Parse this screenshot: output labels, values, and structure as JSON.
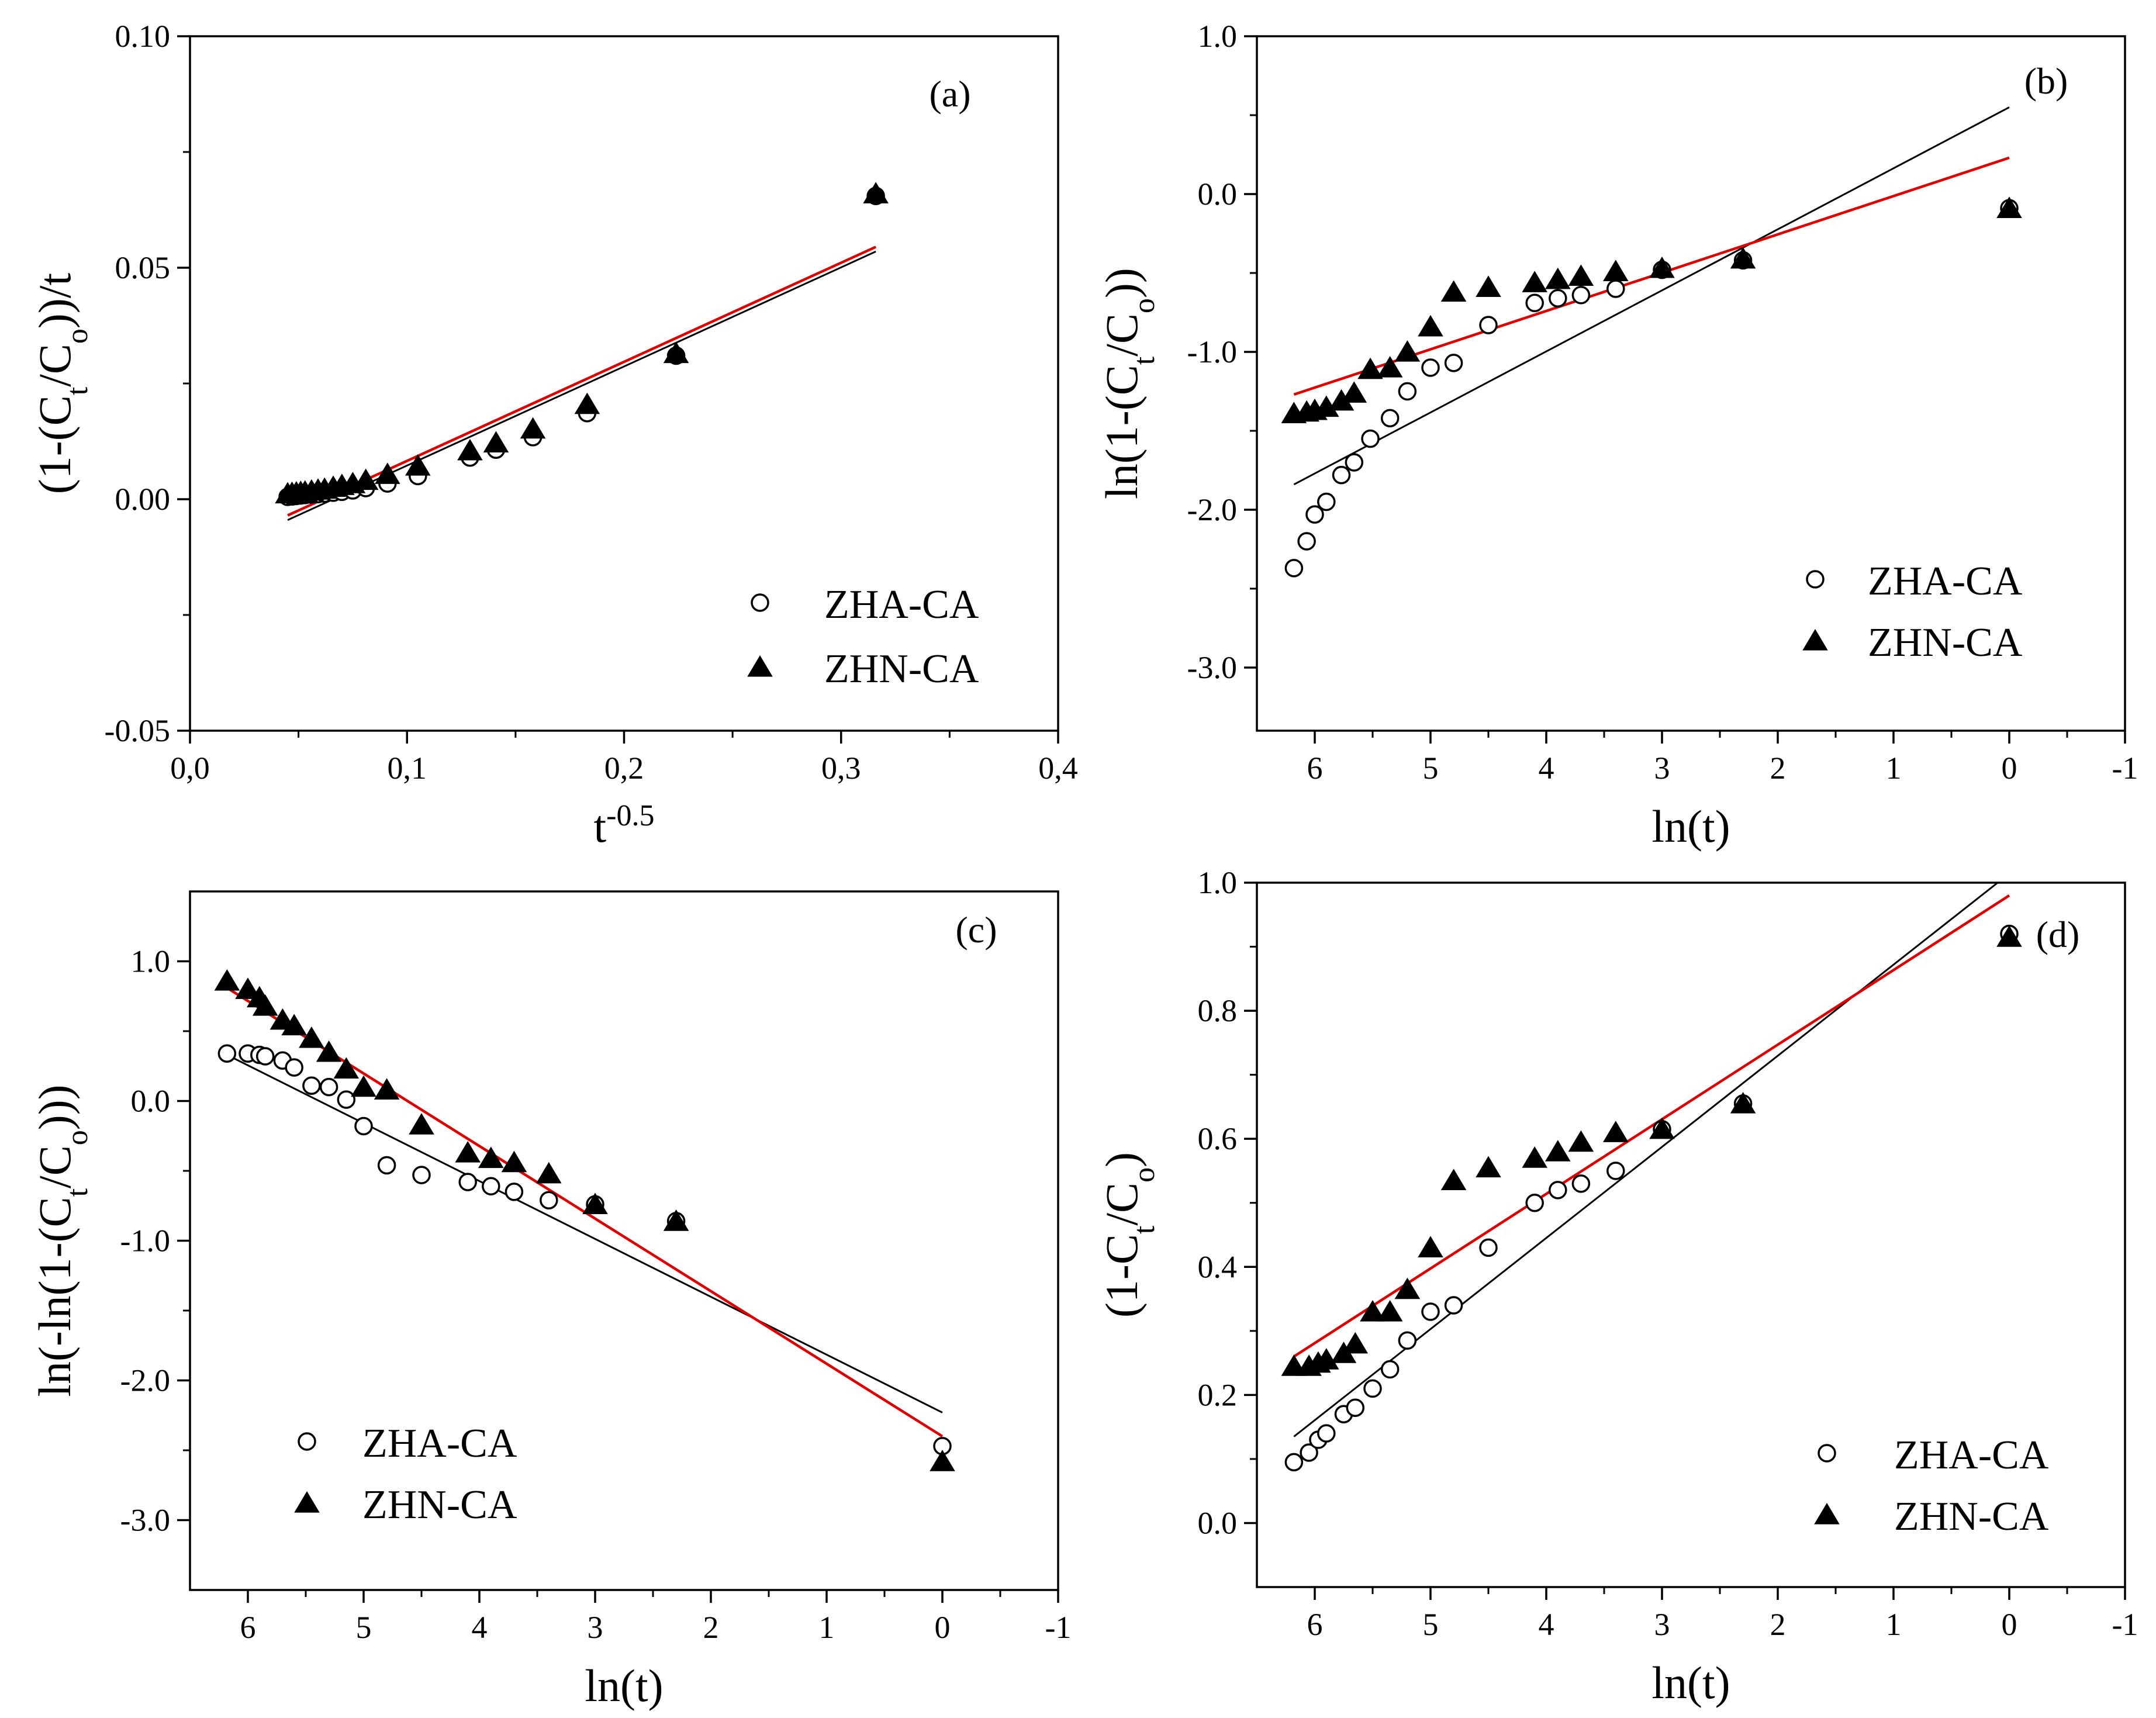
{
  "figure": {
    "description": "Four-panel kinetic model fits"
  },
  "chart_data": [
    {
      "id": "a",
      "type": "scatter",
      "panel_label": "(a)",
      "title": "",
      "xlabel": "t",
      "xlabel_sup": "-0.5",
      "ylabel": "(1-(C",
      "ylabel_sub": "t",
      "ylabel_mid": "/C",
      "ylabel_sub2": "o",
      "ylabel_end": "))/t",
      "xlim": [
        0.0,
        0.4
      ],
      "ylim": [
        -0.05,
        0.1
      ],
      "x_reversed": false,
      "xticks": [
        0.0,
        0.1,
        0.2,
        0.3,
        0.4
      ],
      "xticklabels": [
        "0,0",
        "0,1",
        "0,2",
        "0,3",
        "0,4"
      ],
      "yticks": [
        -0.05,
        0.0,
        0.05,
        0.1
      ],
      "yticklabels": [
        "-0.05",
        "0.00",
        "0.05",
        "0.10"
      ],
      "legend_position": "bottom-right",
      "series": [
        {
          "name": "ZHA-CA",
          "marker": "open-circle",
          "x": [
            0.045,
            0.047,
            0.049,
            0.051,
            0.053,
            0.056,
            0.059,
            0.062,
            0.066,
            0.07,
            0.075,
            0.081,
            0.091,
            0.105,
            0.129,
            0.141,
            0.158,
            0.183,
            0.224,
            0.316
          ],
          "y": [
            0.0005,
            0.0006,
            0.0007,
            0.0008,
            0.0009,
            0.001,
            0.0011,
            0.0012,
            0.0014,
            0.0016,
            0.0019,
            0.0024,
            0.0034,
            0.005,
            0.009,
            0.0107,
            0.0134,
            0.0186,
            0.031,
            0.0655
          ]
        },
        {
          "name": "ZHN-CA",
          "marker": "filled-triangle",
          "x": [
            0.045,
            0.047,
            0.049,
            0.051,
            0.053,
            0.056,
            0.059,
            0.062,
            0.066,
            0.07,
            0.075,
            0.081,
            0.091,
            0.105,
            0.129,
            0.141,
            0.158,
            0.183,
            0.224,
            0.316
          ],
          "y": [
            0.0012,
            0.0013,
            0.0014,
            0.0015,
            0.0016,
            0.0018,
            0.002,
            0.0022,
            0.0026,
            0.003,
            0.0034,
            0.0041,
            0.0054,
            0.0072,
            0.0105,
            0.0122,
            0.0152,
            0.0205,
            0.0315,
            0.066
          ]
        }
      ],
      "fits": [
        {
          "name": "ZHA-CA fit",
          "color": "#000000",
          "x": [
            0.045,
            0.316
          ],
          "y": [
            -0.0045,
            0.0535
          ]
        },
        {
          "name": "ZHN-CA fit",
          "color": "#e00000",
          "x": [
            0.045,
            0.316
          ],
          "y": [
            -0.0035,
            0.0545
          ]
        }
      ]
    },
    {
      "id": "b",
      "type": "scatter",
      "panel_label": "(b)",
      "title": "",
      "xlabel": "ln(t)",
      "ylabel": "ln(1-(C",
      "ylabel_sub": "t",
      "ylabel_mid": "/C",
      "ylabel_sub2": "o",
      "ylabel_end": "))",
      "xlim": [
        6.5,
        -1.0
      ],
      "ylim": [
        -3.4,
        1.0
      ],
      "x_reversed": true,
      "xticks": [
        6,
        5,
        4,
        3,
        2,
        1,
        0,
        -1
      ],
      "xticklabels": [
        "6",
        "5",
        "4",
        "3",
        "2",
        "1",
        "0",
        "-1"
      ],
      "yticks": [
        1.0,
        0.0,
        -1.0,
        -2.0,
        -3.0
      ],
      "yticklabels": [
        "1.0",
        "0.0",
        "-1.0",
        "-2.0",
        "-3.0"
      ],
      "legend_position": "bottom-right",
      "series": [
        {
          "name": "ZHA-CA",
          "marker": "open-circle",
          "x": [
            6.18,
            6.07,
            6.0,
            5.9,
            5.77,
            5.66,
            5.52,
            5.35,
            5.2,
            5.0,
            4.8,
            4.5,
            4.1,
            3.9,
            3.7,
            3.4,
            3.0,
            2.3,
            0.0
          ],
          "y": [
            -2.37,
            -2.2,
            -2.03,
            -1.95,
            -1.78,
            -1.7,
            -1.55,
            -1.42,
            -1.25,
            -1.1,
            -1.07,
            -0.83,
            -0.69,
            -0.66,
            -0.64,
            -0.6,
            -0.48,
            -0.42,
            -0.09
          ]
        },
        {
          "name": "ZHN-CA",
          "marker": "filled-triangle",
          "x": [
            6.18,
            6.07,
            6.0,
            5.9,
            5.77,
            5.66,
            5.52,
            5.35,
            5.2,
            5.0,
            4.8,
            4.5,
            4.1,
            3.9,
            3.7,
            3.4,
            3.0,
            2.3,
            0.0
          ],
          "y": [
            -1.39,
            -1.38,
            -1.37,
            -1.35,
            -1.31,
            -1.26,
            -1.11,
            -1.1,
            -1.0,
            -0.84,
            -0.62,
            -0.59,
            -0.56,
            -0.54,
            -0.52,
            -0.49,
            -0.47,
            -0.41,
            -0.09
          ]
        }
      ],
      "fits": [
        {
          "name": "ZHA-CA fit",
          "color": "#000000",
          "x": [
            6.18,
            0.0
          ],
          "y": [
            -1.84,
            0.55
          ]
        },
        {
          "name": "ZHN-CA fit",
          "color": "#e00000",
          "x": [
            6.18,
            0.0
          ],
          "y": [
            -1.27,
            0.23
          ]
        }
      ]
    },
    {
      "id": "c",
      "type": "scatter",
      "panel_label": "(c)",
      "title": "",
      "xlabel": "ln(t)",
      "ylabel": "ln(-ln(1-(C",
      "ylabel_sub": "t",
      "ylabel_mid": "/C",
      "ylabel_sub2": "o",
      "ylabel_end": ")))",
      "xlim": [
        6.5,
        -1.0
      ],
      "ylim": [
        -3.5,
        1.5
      ],
      "x_reversed": true,
      "xticks": [
        6,
        5,
        4,
        3,
        2,
        1,
        0,
        -1
      ],
      "xticklabels": [
        "6",
        "5",
        "4",
        "3",
        "2",
        "1",
        "0",
        "-1"
      ],
      "yticks": [
        1.0,
        0.0,
        -1.0,
        -2.0,
        -3.0
      ],
      "yticklabels": [
        "1.0",
        "0.0",
        "-1.0",
        "-2.0",
        "-3.0"
      ],
      "legend_position": "bottom-left",
      "series": [
        {
          "name": "ZHA-CA",
          "marker": "open-circle",
          "x": [
            6.18,
            6.0,
            5.9,
            5.85,
            5.7,
            5.6,
            5.45,
            5.3,
            5.15,
            5.0,
            4.8,
            4.5,
            4.1,
            3.9,
            3.7,
            3.4,
            3.0,
            2.3,
            0.0
          ],
          "y": [
            0.34,
            0.34,
            0.33,
            0.32,
            0.29,
            0.24,
            0.11,
            0.1,
            0.01,
            -0.18,
            -0.46,
            -0.53,
            -0.58,
            -0.61,
            -0.65,
            -0.71,
            -0.74,
            -0.86,
            -2.47
          ]
        },
        {
          "name": "ZHN-CA",
          "marker": "filled-triangle",
          "x": [
            6.18,
            6.0,
            5.9,
            5.85,
            5.7,
            5.6,
            5.45,
            5.3,
            5.15,
            5.0,
            4.8,
            4.5,
            4.1,
            3.9,
            3.7,
            3.4,
            3.0,
            2.3,
            0.0
          ],
          "y": [
            0.86,
            0.8,
            0.74,
            0.68,
            0.58,
            0.54,
            0.45,
            0.35,
            0.23,
            0.1,
            0.08,
            -0.17,
            -0.37,
            -0.41,
            -0.44,
            -0.52,
            -0.74,
            -0.86,
            -2.58
          ]
        }
      ],
      "fits": [
        {
          "name": "ZHA-CA fit",
          "color": "#000000",
          "x": [
            6.18,
            0.0
          ],
          "y": [
            0.33,
            -2.23
          ]
        },
        {
          "name": "ZHN-CA fit",
          "color": "#e00000",
          "x": [
            6.18,
            0.0
          ],
          "y": [
            0.81,
            -2.4
          ]
        }
      ]
    },
    {
      "id": "d",
      "type": "scatter",
      "panel_label": "(d)",
      "title": "",
      "xlabel": "ln(t)",
      "ylabel": "(1-C",
      "ylabel_sub": "t",
      "ylabel_mid": "/C",
      "ylabel_sub2": "o",
      "ylabel_end": ")",
      "xlim": [
        6.5,
        -1.0
      ],
      "ylim": [
        -0.1,
        1.0
      ],
      "x_reversed": true,
      "xticks": [
        6,
        5,
        4,
        3,
        2,
        1,
        0,
        -1
      ],
      "xticklabels": [
        "6",
        "5",
        "4",
        "3",
        "2",
        "1",
        "0",
        "-1"
      ],
      "yticks": [
        1.0,
        0.8,
        0.6,
        0.4,
        0.2,
        0.0
      ],
      "yticklabels": [
        "1.0",
        "0.8",
        "0.6",
        "0.4",
        "0.2",
        "0.0"
      ],
      "legend_position": "bottom-right",
      "series": [
        {
          "name": "ZHA-CA",
          "marker": "open-circle",
          "x": [
            6.18,
            6.05,
            5.97,
            5.9,
            5.75,
            5.65,
            5.5,
            5.35,
            5.2,
            5.0,
            4.8,
            4.5,
            4.1,
            3.9,
            3.7,
            3.4,
            3.0,
            2.3,
            0.0
          ],
          "y": [
            0.095,
            0.11,
            0.13,
            0.14,
            0.17,
            0.18,
            0.21,
            0.24,
            0.285,
            0.33,
            0.34,
            0.43,
            0.5,
            0.52,
            0.53,
            0.55,
            0.615,
            0.655,
            0.92
          ]
        },
        {
          "name": "ZHN-CA",
          "marker": "filled-triangle",
          "x": [
            6.18,
            6.05,
            5.97,
            5.9,
            5.75,
            5.65,
            5.5,
            5.35,
            5.2,
            5.0,
            4.8,
            4.5,
            4.1,
            3.9,
            3.7,
            3.4,
            3.0,
            2.3,
            0.0
          ],
          "y": [
            0.245,
            0.245,
            0.25,
            0.255,
            0.265,
            0.28,
            0.33,
            0.33,
            0.365,
            0.43,
            0.535,
            0.555,
            0.57,
            0.58,
            0.595,
            0.61,
            0.615,
            0.655,
            0.915
          ]
        }
      ],
      "fits": [
        {
          "name": "ZHA-CA fit",
          "color": "#000000",
          "x": [
            6.18,
            0.1
          ],
          "y": [
            0.135,
            1.0
          ]
        },
        {
          "name": "ZHN-CA fit",
          "color": "#e00000",
          "x": [
            6.18,
            0.0
          ],
          "y": [
            0.26,
            0.98
          ]
        }
      ]
    }
  ]
}
